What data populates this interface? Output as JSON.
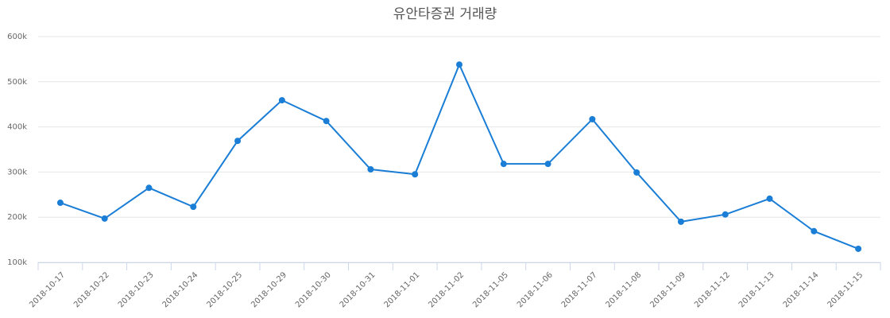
{
  "chart_data": {
    "type": "line",
    "title": "유안타증권 거래량",
    "categories": [
      "2018-10-17",
      "2018-10-22",
      "2018-10-23",
      "2018-10-24",
      "2018-10-25",
      "2018-10-29",
      "2018-10-30",
      "2018-10-31",
      "2018-11-01",
      "2018-11-02",
      "2018-11-05",
      "2018-11-06",
      "2018-11-07",
      "2018-11-08",
      "2018-11-09",
      "2018-11-12",
      "2018-11-13",
      "2018-11-14",
      "2018-11-15"
    ],
    "series": [
      {
        "color": "#1a7ed6",
        "values": [
          232000,
          197000,
          265000,
          223000,
          369000,
          459000,
          413000,
          306000,
          295000,
          538000,
          318000,
          318000,
          417000,
          299000,
          190000,
          206000,
          241000,
          169000,
          130000
        ]
      }
    ],
    "ylim": [
      100000,
      600000
    ],
    "yticks": [
      {
        "value": 100000,
        "label": "100k"
      },
      {
        "value": 200000,
        "label": "200k"
      },
      {
        "value": 300000,
        "label": "300k"
      },
      {
        "value": 400000,
        "label": "400k"
      },
      {
        "value": 500000,
        "label": "500k"
      },
      {
        "value": 600000,
        "label": "600k"
      }
    ],
    "grid": true
  }
}
